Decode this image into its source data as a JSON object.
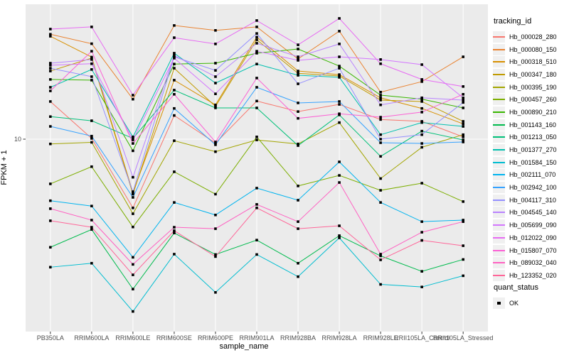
{
  "style": {
    "panel_bg": "#EBEBEB",
    "grid_color": "#FFFFFF",
    "tick_mark_color": "#333333",
    "tick_label_color": "#4D4D4D",
    "axis_title_color": "#000000",
    "point_color": "#000000",
    "legend_key_bg": "#F0F0F0"
  },
  "chart_data": {
    "type": "line",
    "title": "",
    "xlabel": "sample_name",
    "ylabel": "FPKM + 1",
    "y_scale": "log10",
    "y_ticks": [
      10
    ],
    "y_tick_labels": [
      "10"
    ],
    "ylim_approx": [
      1.05,
      50
    ],
    "grid": true,
    "legend_position": "right",
    "legend_title": "tracking_id",
    "legend2_title": "quant_status",
    "legend2_items": [
      {
        "label": "OK",
        "marker": "filled-black-square"
      }
    ],
    "point_marker": "filled-black-square",
    "categories": [
      "PB350LA",
      "RRIM600LA",
      "RRIM600LE",
      "RRIM600SE",
      "RRIM600PE",
      "RRIM901LA",
      "RRIM928BA",
      "RRIM928LA",
      "RRIM928LE",
      "RRII105LA_Control",
      "RRII105LA_Stressed"
    ],
    "series": [
      {
        "name": "Hb_000028_280",
        "color": "#F8766D",
        "values": [
          16.3,
          10.1,
          4.1,
          13.6,
          9.5,
          16.4,
          14.3,
          15.7,
          12.9,
          12.6,
          10.3
        ]
      },
      {
        "name": "Hb_000080_150",
        "color": "#EA8331",
        "values": [
          39.0,
          34.5,
          16.8,
          43.7,
          41.0,
          42.9,
          28.3,
          40.6,
          18.4,
          21.1,
          29.1
        ]
      },
      {
        "name": "Hb_000318_510",
        "color": "#D89000",
        "values": [
          38.0,
          29.0,
          5.0,
          21.5,
          15.6,
          37.6,
          24.2,
          23.1,
          17.1,
          14.9,
          12.2
        ]
      },
      {
        "name": "Hb_000347_180",
        "color": "#C09B00",
        "values": [
          24.2,
          28.6,
          4.9,
          25.1,
          15.3,
          36.3,
          23.5,
          22.7,
          16.6,
          16.3,
          12.6
        ]
      },
      {
        "name": "Hb_000395_190",
        "color": "#A3A500",
        "values": [
          9.4,
          9.6,
          3.8,
          9.8,
          8.5,
          9.9,
          9.4,
          12.4,
          6.0,
          9.0,
          10.6
        ]
      },
      {
        "name": "Hb_000457_260",
        "color": "#7CAE00",
        "values": [
          5.6,
          7.0,
          3.2,
          6.55,
          4.9,
          10.3,
          5.45,
          6.25,
          5.15,
          5.65,
          4.45
        ]
      },
      {
        "name": "Hb_000890_210",
        "color": "#39B600",
        "values": [
          21.7,
          21.5,
          8.6,
          26.5,
          26.8,
          30.5,
          32.2,
          25.8,
          17.7,
          16.8,
          15.0
        ]
      },
      {
        "name": "Hb_001143_160",
        "color": "#00BB4E",
        "values": [
          2.46,
          3.1,
          1.43,
          2.96,
          2.24,
          2.7,
          2.0,
          2.86,
          2.2,
          1.8,
          2.1
        ]
      },
      {
        "name": "Hb_001213_050",
        "color": "#00C079",
        "values": [
          13.4,
          12.7,
          10.1,
          18.9,
          15.0,
          15.0,
          9.2,
          13.7,
          8.0,
          11.1,
          9.9
        ]
      },
      {
        "name": "Hb_001377_270",
        "color": "#00C0AF",
        "values": [
          19.6,
          24.7,
          10.3,
          30.5,
          20.7,
          26.5,
          22.9,
          22.3,
          10.6,
          12.4,
          11.8
        ]
      },
      {
        "name": "Hb_001584_150",
        "color": "#00BDD0",
        "values": [
          1.9,
          2.0,
          1.07,
          2.25,
          1.37,
          2.24,
          1.68,
          2.78,
          1.52,
          1.47,
          1.7
        ]
      },
      {
        "name": "Hb_002111_070",
        "color": "#00B4EF",
        "values": [
          4.5,
          4.2,
          2.16,
          4.4,
          3.74,
          5.3,
          4.53,
          7.45,
          4.4,
          3.43,
          3.5
        ]
      },
      {
        "name": "Hb_002942_100",
        "color": "#35A2FF",
        "values": [
          11.8,
          10.4,
          4.7,
          14.9,
          9.3,
          19.6,
          16.0,
          16.3,
          9.55,
          9.46,
          9.64
        ]
      },
      {
        "name": "Hb_004117_310",
        "color": "#9590FF",
        "values": [
          25.1,
          22.5,
          5.06,
          29.1,
          24.4,
          39.4,
          20.5,
          25.1,
          10.0,
          10.6,
          16.1
        ]
      },
      {
        "name": "Hb_004545_140",
        "color": "#B983FF",
        "values": [
          26.8,
          28.1,
          6.1,
          29.6,
          22.5,
          34.7,
          29.1,
          34.4,
          15.6,
          17.1,
          16.6
        ]
      },
      {
        "name": "Hb_005699_090",
        "color": "#D376FF",
        "values": [
          26.1,
          26.6,
          9.9,
          28.6,
          18.0,
          31.3,
          27.8,
          29.1,
          28.1,
          26.3,
          17.1
        ]
      },
      {
        "name": "Hb_012022_090",
        "color": "#E76BF3",
        "values": [
          41.7,
          42.9,
          17.7,
          37.3,
          34.4,
          46.6,
          34.0,
          47.9,
          26.6,
          21.7,
          19.8
        ]
      },
      {
        "name": "Hb_015807_070",
        "color": "#FC61D5",
        "values": [
          18.7,
          31.3,
          9.46,
          17.9,
          9.64,
          22.1,
          13.1,
          13.9,
          13.3,
          14.2,
          17.9
        ]
      },
      {
        "name": "Hb_089032_040",
        "color": "#FF61C2",
        "values": [
          4.06,
          3.5,
          1.97,
          3.19,
          3.13,
          4.29,
          3.43,
          5.7,
          2.25,
          2.99,
          3.43
        ]
      },
      {
        "name": "Hb_123352_020",
        "color": "#FF6598",
        "values": [
          3.47,
          3.19,
          1.72,
          3.05,
          2.18,
          4.1,
          3.13,
          3.25,
          2.09,
          2.69,
          2.51
        ]
      }
    ]
  }
}
